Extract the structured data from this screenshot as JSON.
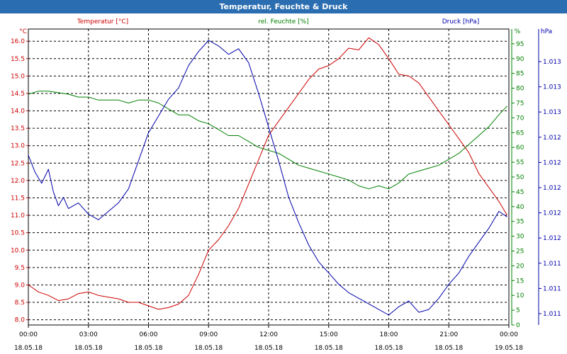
{
  "window": {
    "title": "Temperatur, Feuchte & Druck"
  },
  "colors": {
    "temperature": "#cc0000",
    "humidity": "#008000",
    "pressure": "#0000aa",
    "titlebar": "#2a6db0"
  },
  "chart_data": {
    "type": "line",
    "grid": true,
    "headers": {
      "temperature": "Temperatur [°C]",
      "humidity": "rel. Feuchte [%]",
      "pressure": "Druck [hPa]"
    },
    "units": {
      "left": "°C",
      "right1": "%",
      "right2": "hPa"
    },
    "x_ticks": [
      {
        "time": "00:00",
        "date": "18.05.18"
      },
      {
        "time": "03:00",
        "date": "18.05.18"
      },
      {
        "time": "06:00",
        "date": "18.05.18"
      },
      {
        "time": "09:00",
        "date": "18.05.18"
      },
      {
        "time": "12:00",
        "date": "18.05.18"
      },
      {
        "time": "15:00",
        "date": "18.05.18"
      },
      {
        "time": "18:00",
        "date": "18.05.18"
      },
      {
        "time": "21:00",
        "date": "18.05.18"
      },
      {
        "time": "00:00",
        "date": "19.05.18"
      }
    ],
    "y_left": {
      "ticks": [
        "16.0",
        "15.5",
        "15.0",
        "14.5",
        "14.0",
        "13.5",
        "13.0",
        "12.5",
        "12.0",
        "11.5",
        "11.0",
        "10.5",
        "10.0",
        "9.5",
        "9.0",
        "8.5",
        "8.0"
      ],
      "range": [
        7.85,
        16.35
      ]
    },
    "y_right_humidity": {
      "ticks": [
        "95",
        "90",
        "85",
        "80",
        "75",
        "70",
        "65",
        "60",
        "55",
        "50",
        "45",
        "40",
        "35",
        "30",
        "25",
        "20",
        "15",
        "10",
        "5",
        "0"
      ],
      "range": [
        0,
        100
      ]
    },
    "y_right_pressure": {
      "tick_labels": [
        "1.013",
        "1.013",
        "1.013",
        "1.012",
        "1.012",
        "1.012",
        "1.012",
        "1.012",
        "1.011",
        "1.011",
        "1.011"
      ]
    },
    "series": [
      {
        "name": "Temperatur [°C]",
        "axis": "left",
        "points": [
          [
            "00:00",
            9.0
          ],
          [
            "00:30",
            8.8
          ],
          [
            "01:00",
            8.7
          ],
          [
            "01:30",
            8.55
          ],
          [
            "02:00",
            8.6
          ],
          [
            "02:30",
            8.75
          ],
          [
            "03:00",
            8.8
          ],
          [
            "03:30",
            8.7
          ],
          [
            "04:00",
            8.65
          ],
          [
            "04:30",
            8.6
          ],
          [
            "05:00",
            8.5
          ],
          [
            "05:30",
            8.5
          ],
          [
            "06:00",
            8.4
          ],
          [
            "06:30",
            8.3
          ],
          [
            "07:00",
            8.35
          ],
          [
            "07:30",
            8.45
          ],
          [
            "08:00",
            8.7
          ],
          [
            "08:30",
            9.3
          ],
          [
            "09:00",
            10.0
          ],
          [
            "09:30",
            10.3
          ],
          [
            "10:00",
            10.7
          ],
          [
            "10:30",
            11.2
          ],
          [
            "11:00",
            11.9
          ],
          [
            "11:30",
            12.6
          ],
          [
            "12:00",
            13.3
          ],
          [
            "12:30",
            13.7
          ],
          [
            "13:00",
            14.1
          ],
          [
            "13:30",
            14.5
          ],
          [
            "14:00",
            14.9
          ],
          [
            "14:30",
            15.2
          ],
          [
            "15:00",
            15.3
          ],
          [
            "15:30",
            15.5
          ],
          [
            "16:00",
            15.8
          ],
          [
            "16:30",
            15.75
          ],
          [
            "17:00",
            16.1
          ],
          [
            "17:30",
            15.9
          ],
          [
            "18:00",
            15.5
          ],
          [
            "18:30",
            15.05
          ],
          [
            "19:00",
            15.0
          ],
          [
            "19:30",
            14.8
          ],
          [
            "20:00",
            14.4
          ],
          [
            "20:30",
            14.0
          ],
          [
            "21:00",
            13.6
          ],
          [
            "21:30",
            13.2
          ],
          [
            "22:00",
            12.8
          ],
          [
            "22:30",
            12.2
          ],
          [
            "23:00",
            11.8
          ],
          [
            "23:30",
            11.4
          ],
          [
            "23:55",
            11.0
          ]
        ]
      },
      {
        "name": "rel. Feuchte [%]",
        "axis": "right1",
        "points": [
          [
            "00:00",
            78
          ],
          [
            "00:30",
            79
          ],
          [
            "01:00",
            79
          ],
          [
            "01:30",
            78.5
          ],
          [
            "02:00",
            78
          ],
          [
            "02:30",
            77
          ],
          [
            "03:00",
            77
          ],
          [
            "03:30",
            76
          ],
          [
            "04:00",
            76
          ],
          [
            "04:30",
            76
          ],
          [
            "05:00",
            75
          ],
          [
            "05:30",
            76
          ],
          [
            "06:00",
            76
          ],
          [
            "06:30",
            75
          ],
          [
            "07:00",
            73
          ],
          [
            "07:30",
            71
          ],
          [
            "08:00",
            71
          ],
          [
            "08:30",
            69
          ],
          [
            "09:00",
            68
          ],
          [
            "09:30",
            66
          ],
          [
            "10:00",
            64
          ],
          [
            "10:30",
            64
          ],
          [
            "11:00",
            62
          ],
          [
            "11:30",
            60
          ],
          [
            "12:00",
            59
          ],
          [
            "12:30",
            58
          ],
          [
            "13:00",
            56
          ],
          [
            "13:30",
            54
          ],
          [
            "14:00",
            53
          ],
          [
            "14:30",
            52
          ],
          [
            "15:00",
            51
          ],
          [
            "15:30",
            50
          ],
          [
            "16:00",
            49
          ],
          [
            "16:30",
            47
          ],
          [
            "17:00",
            46
          ],
          [
            "17:30",
            47
          ],
          [
            "18:00",
            46
          ],
          [
            "18:30",
            48
          ],
          [
            "19:00",
            51
          ],
          [
            "19:30",
            52
          ],
          [
            "20:00",
            53
          ],
          [
            "20:30",
            54
          ],
          [
            "21:00",
            56
          ],
          [
            "21:30",
            58
          ],
          [
            "22:00",
            61
          ],
          [
            "22:30",
            64
          ],
          [
            "23:00",
            67
          ],
          [
            "23:30",
            71
          ],
          [
            "23:55",
            74
          ]
        ]
      },
      {
        "name": "Druck [hPa]",
        "axis": "right2",
        "normalized_level": true,
        "points": [
          [
            "00:00",
            0.58
          ],
          [
            "00:20",
            0.52
          ],
          [
            "00:40",
            0.48
          ],
          [
            "01:00",
            0.53
          ],
          [
            "01:15",
            0.45
          ],
          [
            "01:30",
            0.4
          ],
          [
            "01:45",
            0.43
          ],
          [
            "02:00",
            0.39
          ],
          [
            "02:30",
            0.41
          ],
          [
            "03:00",
            0.37
          ],
          [
            "03:30",
            0.35
          ],
          [
            "04:00",
            0.38
          ],
          [
            "04:30",
            0.41
          ],
          [
            "05:00",
            0.46
          ],
          [
            "05:30",
            0.56
          ],
          [
            "06:00",
            0.66
          ],
          [
            "06:30",
            0.72
          ],
          [
            "07:00",
            0.78
          ],
          [
            "07:30",
            0.82
          ],
          [
            "08:00",
            0.9
          ],
          [
            "08:30",
            0.95
          ],
          [
            "09:00",
            0.99
          ],
          [
            "09:30",
            0.97
          ],
          [
            "10:00",
            0.94
          ],
          [
            "10:30",
            0.96
          ],
          [
            "11:00",
            0.91
          ],
          [
            "11:30",
            0.8
          ],
          [
            "12:00",
            0.68
          ],
          [
            "12:30",
            0.56
          ],
          [
            "13:00",
            0.43
          ],
          [
            "13:30",
            0.34
          ],
          [
            "14:00",
            0.26
          ],
          [
            "14:30",
            0.2
          ],
          [
            "15:00",
            0.16
          ],
          [
            "15:30",
            0.12
          ],
          [
            "16:00",
            0.09
          ],
          [
            "16:30",
            0.07
          ],
          [
            "17:00",
            0.05
          ],
          [
            "17:30",
            0.03
          ],
          [
            "18:00",
            0.01
          ],
          [
            "18:30",
            0.04
          ],
          [
            "19:00",
            0.06
          ],
          [
            "19:30",
            0.02
          ],
          [
            "20:00",
            0.03
          ],
          [
            "20:30",
            0.07
          ],
          [
            "21:00",
            0.12
          ],
          [
            "21:30",
            0.16
          ],
          [
            "22:00",
            0.22
          ],
          [
            "22:30",
            0.27
          ],
          [
            "23:00",
            0.32
          ],
          [
            "23:30",
            0.38
          ],
          [
            "23:55",
            0.36
          ]
        ]
      }
    ]
  }
}
